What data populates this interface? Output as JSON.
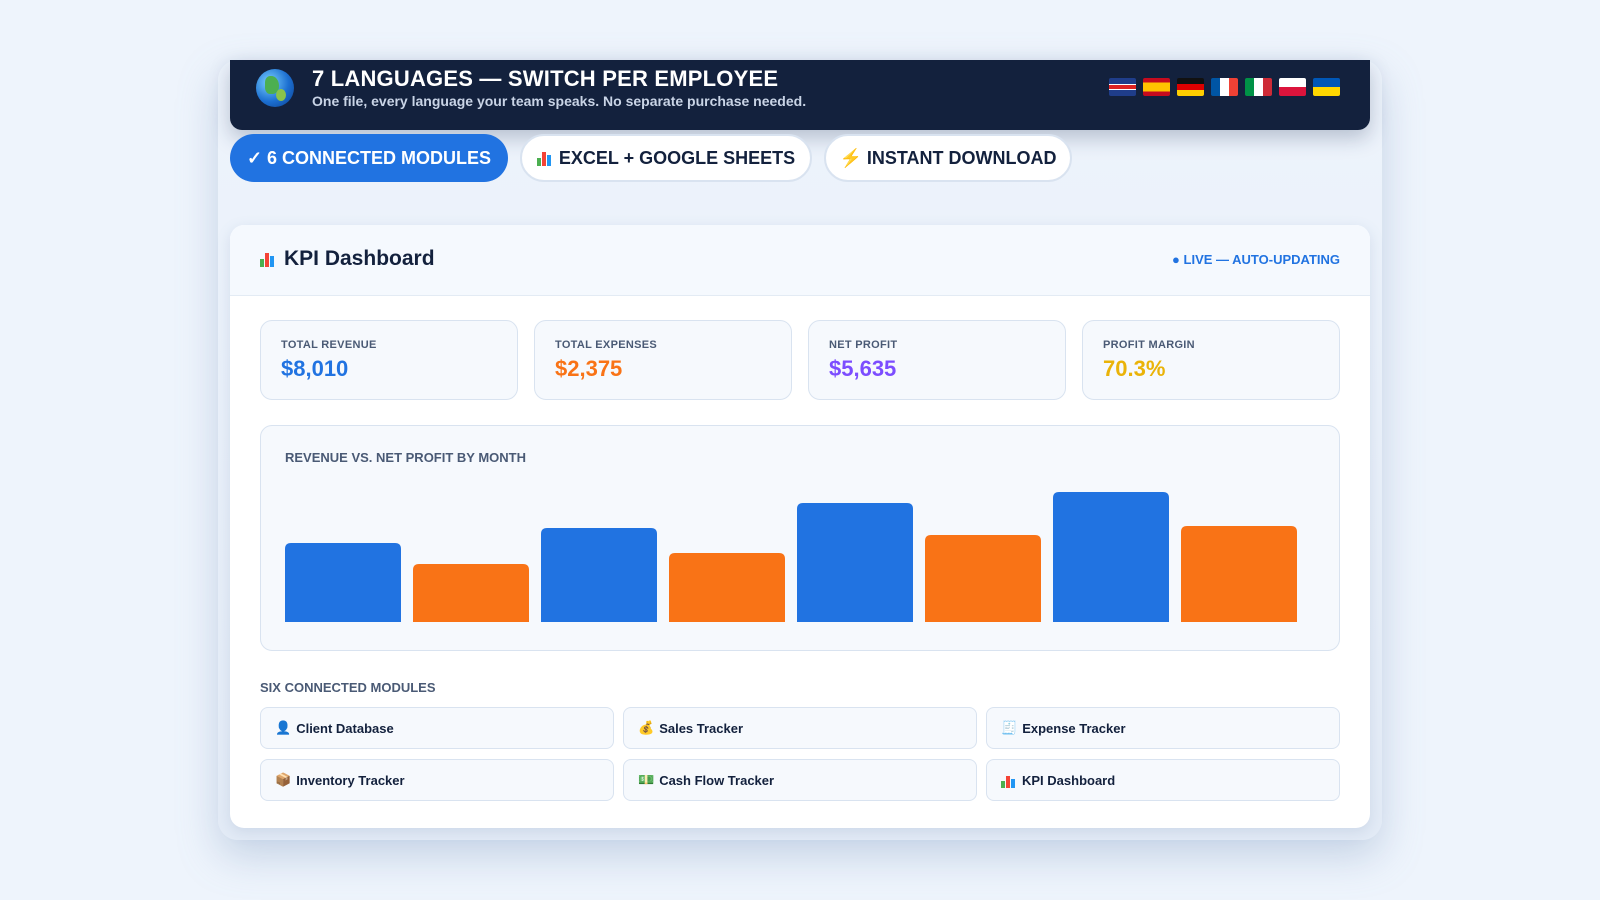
{
  "banner": {
    "title": "7 LANGUAGES — SWITCH PER EMPLOYEE",
    "subtitle": "One file, every language your team speaks. No separate purchase needed.",
    "flags": [
      "uk-flag",
      "spain-flag",
      "germany-flag",
      "france-flag",
      "italy-flag",
      "poland-flag",
      "ukraine-flag"
    ]
  },
  "pills": {
    "modules": "✓ 6 CONNECTED MODULES",
    "excel": "EXCEL + GOOGLE SHEETS",
    "download": "⚡ INSTANT DOWNLOAD"
  },
  "dashboard": {
    "title": "KPI Dashboard",
    "status": "● LIVE — AUTO-UPDATING",
    "kpis": [
      {
        "label": "TOTAL REVENUE",
        "value": "$8,010",
        "color": "#2173e1"
      },
      {
        "label": "TOTAL EXPENSES",
        "value": "$2,375",
        "color": "#f97316"
      },
      {
        "label": "NET PROFIT",
        "value": "$5,635",
        "color": "#7c4dff"
      },
      {
        "label": "PROFIT MARGIN",
        "value": "70.3%",
        "color": "#eab308"
      }
    ],
    "chart_title": "REVENUE VS. NET PROFIT BY MONTH",
    "modules_title": "SIX CONNECTED MODULES",
    "modules": [
      {
        "icon": "👤",
        "label": "Client Database"
      },
      {
        "icon": "💰",
        "label": "Sales Tracker"
      },
      {
        "icon": "🧾",
        "label": "Expense Tracker"
      },
      {
        "icon": "📦",
        "label": "Inventory Tracker"
      },
      {
        "icon": "💵",
        "label": "Cash Flow Tracker"
      },
      {
        "icon": "bar-chart",
        "label": "KPI Dashboard"
      }
    ]
  },
  "chart_data": {
    "type": "bar",
    "title": "REVENUE VS. NET PROFIT BY MONTH",
    "ylim": [
      0,
      140
    ],
    "categories": [
      "",
      "",
      "",
      ""
    ],
    "series": [
      {
        "values": [
          79,
          94,
          119,
          130
        ],
        "color": "#2173e1"
      },
      {
        "values": [
          58,
          69,
          87,
          96
        ],
        "color": "#f97316"
      }
    ],
    "legend": "none",
    "grid": false
  }
}
